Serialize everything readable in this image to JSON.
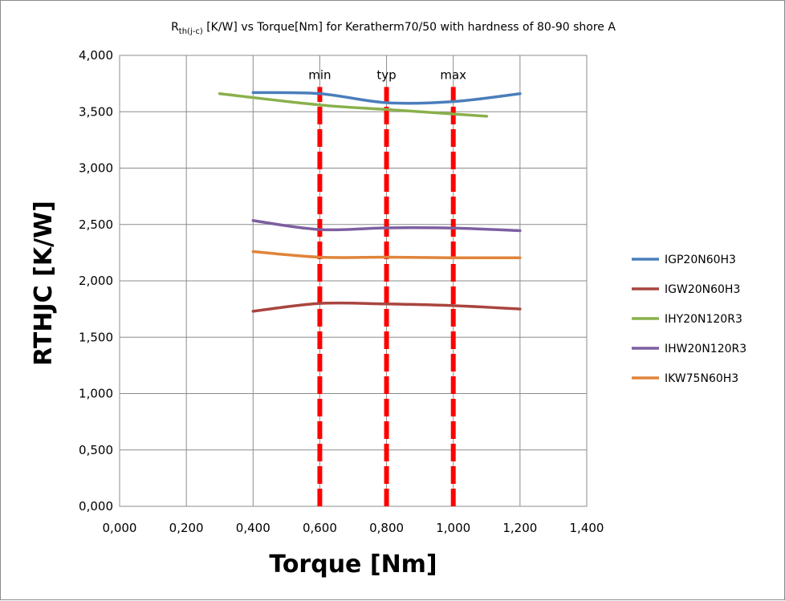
{
  "chart_data": {
    "type": "line",
    "title": {
      "prefix": "R",
      "subscript": "th(j-c)",
      "rest": " [K/W] vs Torque[Nm] for Keratherm70/50 with hardness of 80-90 shore A"
    },
    "xlabel": "Torque [Nm]",
    "ylabel": "RTHJC [K/W]",
    "xlim": [
      0,
      1.4
    ],
    "ylim": [
      0,
      4
    ],
    "x_ticks": [
      "0,000",
      "0,200",
      "0,400",
      "0,600",
      "0,800",
      "1,000",
      "1,200",
      "1,400"
    ],
    "y_ticks": [
      "0,000",
      "0,500",
      "1,000",
      "1,500",
      "2,000",
      "2,500",
      "3,000",
      "3,500",
      "4,000"
    ],
    "grid": true,
    "legend_position": "right",
    "series": [
      {
        "name": "IGP20N60H3",
        "color": "#4a7ebb",
        "x": [
          0.4,
          0.6,
          0.8,
          1.0,
          1.2
        ],
        "y": [
          3.67,
          3.66,
          3.58,
          3.59,
          3.66
        ]
      },
      {
        "name": "IGW20N60H3",
        "color": "#a9453f",
        "x": [
          0.4,
          0.6,
          0.8,
          1.0,
          1.2
        ],
        "y": [
          1.73,
          1.8,
          1.795,
          1.78,
          1.75
        ]
      },
      {
        "name": "IHY20N120R3",
        "color": "#89b04b",
        "x": [
          0.3,
          0.6,
          0.8,
          1.0,
          1.1
        ],
        "y": [
          3.66,
          3.56,
          3.52,
          3.48,
          3.46
        ]
      },
      {
        "name": "IHW20N120R3",
        "color": "#7d5fa0",
        "x": [
          0.4,
          0.6,
          0.8,
          1.0,
          1.2
        ],
        "y": [
          2.535,
          2.455,
          2.47,
          2.468,
          2.445
        ]
      },
      {
        "name": "IKW75N60H3",
        "color": "#e0843a",
        "x": [
          0.4,
          0.6,
          0.8,
          1.0,
          1.2
        ],
        "y": [
          2.26,
          2.21,
          2.21,
          2.205,
          2.205
        ]
      }
    ],
    "reference_lines": [
      {
        "label": "min",
        "x": 0.6,
        "color": "#ff0000"
      },
      {
        "label": "typ",
        "x": 0.8,
        "color": "#ff0000"
      },
      {
        "label": "max",
        "x": 1.0,
        "color": "#ff0000"
      }
    ]
  }
}
